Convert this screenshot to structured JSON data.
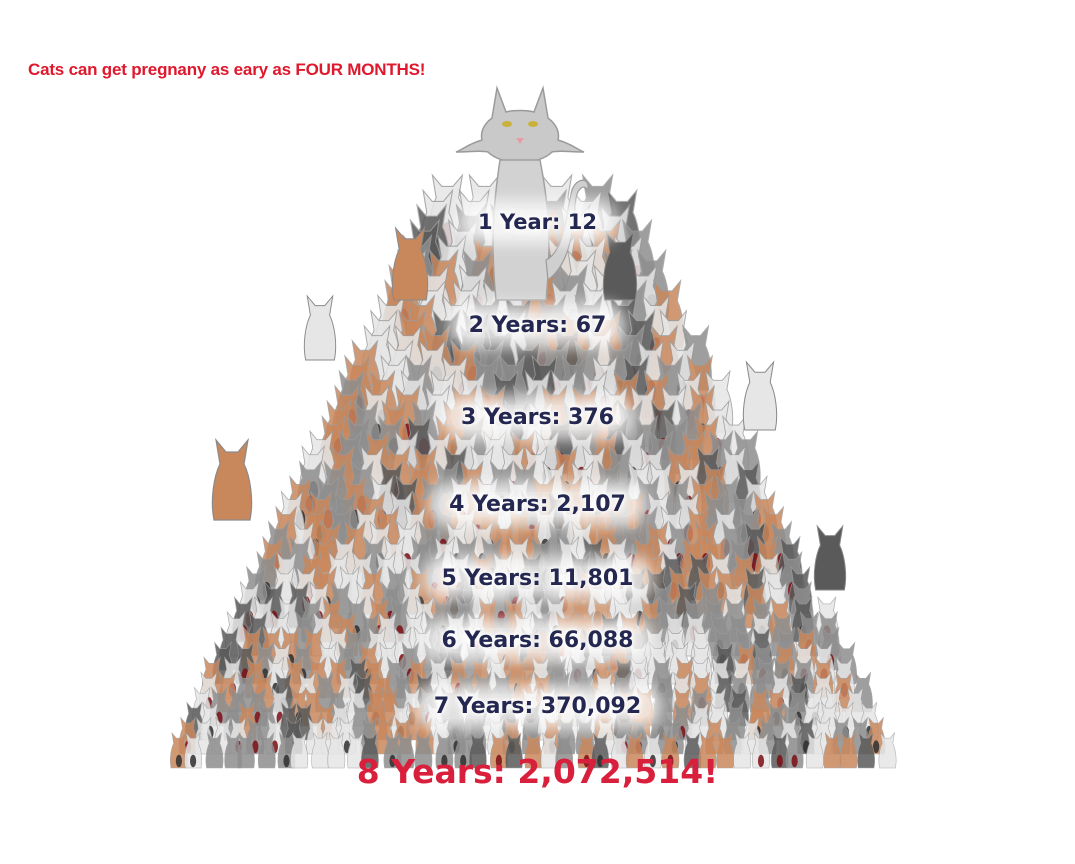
{
  "headline": "Cats can get pregnany as eary as FOUR MONTHS!",
  "colors": {
    "headline": "#e0182d",
    "label_text": "#242850",
    "final_text": "#d81f3c",
    "cat_orange": "#c9875c",
    "cat_gray": "#8e8e8e",
    "cat_dark": "#5a5a5a",
    "cat_white": "#e6e6e6",
    "cat_red_belly": "#7a0e14"
  },
  "illustration": {
    "subject": "pyramid of cartoon cats",
    "top_cat_icon": "gray-cat-icon"
  },
  "years": [
    {
      "label": "1 Year: 12"
    },
    {
      "label": "2 Years: 67"
    },
    {
      "label": "3 Years: 376"
    },
    {
      "label": "4 Years: 2,107"
    },
    {
      "label": "5 Years: 11,801"
    },
    {
      "label": "6 Years: 66,088"
    },
    {
      "label": "7 Years: 370,092"
    }
  ],
  "final": {
    "label": "8 Years: 2,072,514!"
  }
}
